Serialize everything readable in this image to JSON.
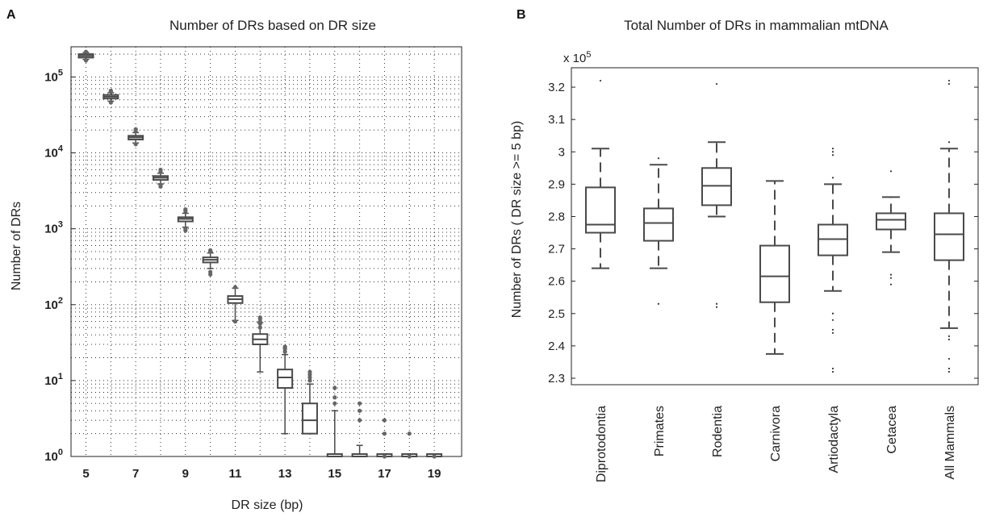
{
  "chart_data": [
    {
      "panel": "A",
      "type": "box",
      "title": "Number of DRs based on DR size",
      "xlabel": "DR size (bp)",
      "ylabel": "Number of DRs",
      "yscale": "log",
      "ylim": [
        1,
        250000
      ],
      "grid": "on",
      "xtick_labels": [
        "5",
        "7",
        "9",
        "11",
        "13",
        "15",
        "17",
        "19"
      ],
      "ytick_exponents": [
        "0",
        "1",
        "2",
        "3",
        "4",
        "5"
      ],
      "boxes": [
        {
          "x": 5,
          "q1": 180000,
          "median": 190000,
          "q3": 200000,
          "whisker_low": 170000,
          "whisker_high": 210000,
          "outliers": [
            165000,
            215000
          ]
        },
        {
          "x": 6,
          "q1": 52000,
          "median": 55000,
          "q3": 58000,
          "whisker_low": 48000,
          "whisker_high": 62000,
          "outliers": [
            46000,
            64000,
            66000
          ]
        },
        {
          "x": 7,
          "q1": 15000,
          "median": 16000,
          "q3": 16800,
          "whisker_low": 13500,
          "whisker_high": 18500,
          "outliers": [
            13000,
            19500,
            20500
          ]
        },
        {
          "x": 8,
          "q1": 4400,
          "median": 4700,
          "q3": 4950,
          "whisker_low": 3900,
          "whisker_high": 5400,
          "outliers": [
            3600,
            3800,
            5700,
            6000
          ]
        },
        {
          "x": 9,
          "q1": 1250,
          "median": 1350,
          "q3": 1420,
          "whisker_low": 1050,
          "whisker_high": 1600,
          "outliers": [
            950,
            1000,
            1700,
            1800
          ]
        },
        {
          "x": 10,
          "q1": 360,
          "median": 390,
          "q3": 420,
          "whisker_low": 300,
          "whisker_high": 480,
          "outliers": [
            250,
            270,
            500,
            520
          ]
        },
        {
          "x": 11,
          "q1": 105,
          "median": 118,
          "q3": 130,
          "whisker_low": 62,
          "whisker_high": 165,
          "outliers": [
            60,
            170
          ]
        },
        {
          "x": 12,
          "q1": 30,
          "median": 35,
          "q3": 41,
          "whisker_low": 13,
          "whisker_high": 58,
          "outliers": [
            50,
            56,
            60,
            65,
            68
          ]
        },
        {
          "x": 13,
          "q1": 8,
          "median": 11,
          "q3": 14,
          "whisker_low": 2,
          "whisker_high": 22,
          "outliers": [
            24,
            26,
            27,
            28
          ]
        },
        {
          "x": 14,
          "q1": 2,
          "median": 3,
          "q3": 5,
          "whisker_low": 2,
          "whisker_high": 9,
          "outliers": [
            10,
            11,
            12,
            13
          ]
        },
        {
          "x": 15,
          "q1": 1,
          "median": 1,
          "q3": 1,
          "whisker_low": 1,
          "whisker_high": 4,
          "outliers": [
            5,
            6,
            8
          ]
        },
        {
          "x": 16,
          "q1": 1,
          "median": 1,
          "q3": 1,
          "whisker_low": 1,
          "whisker_high": 1.4,
          "outliers": [
            3,
            4,
            5
          ]
        },
        {
          "x": 17,
          "q1": 1,
          "median": 1,
          "q3": 1,
          "whisker_low": 1,
          "whisker_high": 1,
          "outliers": [
            1,
            2,
            3
          ]
        },
        {
          "x": 18,
          "q1": 1,
          "median": 1,
          "q3": 1,
          "whisker_low": 1,
          "whisker_high": 1,
          "outliers": [
            1,
            2
          ]
        },
        {
          "x": 19,
          "q1": 1,
          "median": 1,
          "q3": 1,
          "whisker_low": 1,
          "whisker_high": 1,
          "outliers": [
            1
          ]
        }
      ]
    },
    {
      "panel": "B",
      "type": "box",
      "title": "Total Number of DRs in mammalian mtDNA",
      "ylabel": "Number of DRs ( DR size >= 5 bp)",
      "yscale_note": "x 10",
      "yscale_exp": "5",
      "ylim": [
        2.28,
        3.26
      ],
      "grid": "off",
      "ytick_labels": [
        "2.3",
        "2.4",
        "2.5",
        "2.6",
        "2.7",
        "2.8",
        "2.9",
        "3",
        "3.1",
        "3.2"
      ],
      "boxes": [
        {
          "category": "Diprotodontia",
          "q1": 2.75,
          "median": 2.775,
          "q3": 2.89,
          "whisker_low": 2.64,
          "whisker_high": 3.01,
          "outliers": [
            3.22
          ]
        },
        {
          "category": "Primates",
          "q1": 2.725,
          "median": 2.78,
          "q3": 2.825,
          "whisker_low": 2.64,
          "whisker_high": 2.96,
          "outliers": [
            2.53,
            2.98
          ]
        },
        {
          "category": "Rodentia",
          "q1": 2.835,
          "median": 2.895,
          "q3": 2.95,
          "whisker_low": 2.8,
          "whisker_high": 3.03,
          "outliers": [
            2.52,
            2.53,
            3.21
          ]
        },
        {
          "category": "Carnivora",
          "q1": 2.535,
          "median": 2.615,
          "q3": 2.71,
          "whisker_low": 2.375,
          "whisker_high": 2.91,
          "outliers": []
        },
        {
          "category": "Artiodactyla",
          "q1": 2.68,
          "median": 2.73,
          "q3": 2.775,
          "whisker_low": 2.57,
          "whisker_high": 2.9,
          "outliers": [
            2.32,
            2.33,
            2.44,
            2.45,
            2.48,
            2.5,
            2.92,
            2.99,
            3.0,
            3.01
          ]
        },
        {
          "category": "Cetacea",
          "q1": 2.76,
          "median": 2.79,
          "q3": 2.81,
          "whisker_low": 2.69,
          "whisker_high": 2.86,
          "outliers": [
            2.59,
            2.61,
            2.62,
            2.94
          ]
        },
        {
          "category": "All Mammals",
          "q1": 2.665,
          "median": 2.745,
          "q3": 2.81,
          "whisker_low": 2.455,
          "whisker_high": 3.01,
          "outliers": [
            2.32,
            2.33,
            2.36,
            2.42,
            2.43,
            3.03,
            3.21,
            3.22
          ]
        }
      ]
    }
  ]
}
